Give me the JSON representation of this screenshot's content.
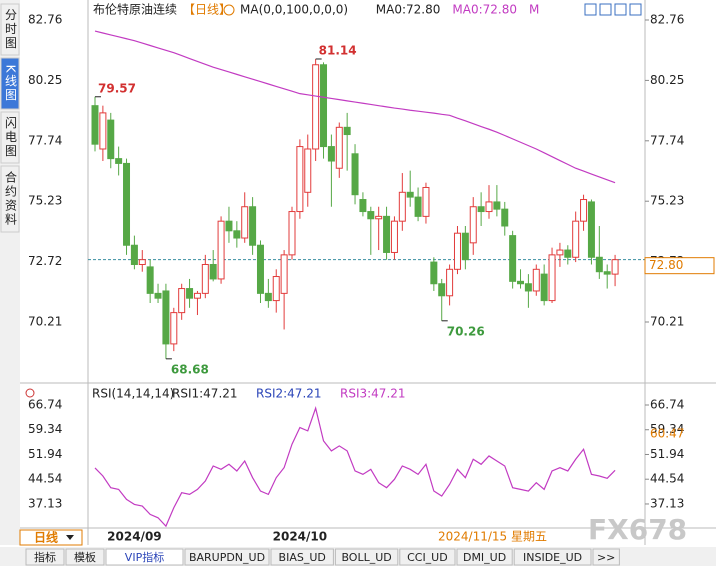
{
  "chart_data": [
    {
      "type": "candlestick",
      "title": "布伦特原油连续",
      "subtitle": "【日线】",
      "legend_items": [
        "MA(0,0,100,0,0,0)",
        "MA0:72.80",
        "MA0:72.80",
        "M"
      ],
      "legend_colors": [
        "#222222",
        "#222222",
        "#c23bc2",
        "#c23bc2"
      ],
      "categories": [
        null,
        null,
        null,
        null,
        null,
        "2024/09",
        null,
        null,
        null,
        null,
        null,
        null,
        null,
        null,
        null,
        null,
        null,
        null,
        null,
        null,
        null,
        null,
        null,
        null,
        null,
        null,
        "2024/10",
        null,
        null,
        null,
        null,
        null,
        null,
        null,
        null,
        null,
        null,
        null,
        null,
        null,
        null,
        null,
        null,
        null,
        null,
        null,
        null,
        null,
        null,
        null,
        null,
        null,
        null,
        null,
        null,
        null,
        null,
        null,
        null,
        null,
        null,
        null,
        null,
        null,
        null,
        null,
        null
      ],
      "open": [
        79.2,
        77.4,
        78.6,
        77.0,
        76.8,
        73.4,
        72.6,
        72.5,
        71.4,
        71.5,
        69.3,
        70.6,
        71.6,
        71.2,
        71.4,
        72.6,
        72.0,
        74.4,
        74.0,
        73.7,
        75.0,
        73.4,
        71.4,
        71.1,
        71.4,
        73.0,
        74.8,
        75.6,
        77.4,
        80.9,
        77.5,
        76.6,
        78.3,
        77.2,
        75.3,
        74.8,
        74.5,
        74.6,
        73.1,
        74.4,
        75.6,
        75.4,
        74.6,
        72.7,
        71.8,
        71.3,
        72.4,
        73.9,
        73.5,
        75.0,
        74.8,
        75.2,
        74.9,
        73.8,
        71.9,
        71.8,
        71.5,
        72.2,
        71.1,
        73.0,
        73.2,
        72.9,
        74.4,
        75.2,
        72.9,
        72.3,
        72.2
      ],
      "high": [
        79.57,
        79.2,
        78.9,
        77.5,
        77.0,
        73.8,
        73.2,
        72.8,
        71.8,
        71.8,
        70.8,
        71.8,
        72.0,
        71.5,
        73.0,
        73.2,
        74.6,
        75.0,
        74.4,
        75.6,
        75.4,
        73.6,
        72.0,
        72.4,
        73.2,
        75.0,
        77.8,
        78.0,
        81.14,
        81.0,
        78.0,
        78.5,
        78.9,
        77.6,
        75.6,
        75.0,
        75.0,
        75.0,
        74.6,
        76.4,
        76.5,
        75.8,
        76.0,
        72.9,
        72.0,
        72.6,
        74.2,
        74.2,
        75.4,
        75.6,
        75.9,
        75.9,
        75.2,
        74.0,
        72.4,
        72.2,
        72.6,
        72.6,
        73.3,
        73.5,
        73.4,
        74.8,
        75.5,
        75.3,
        74.2,
        72.6,
        73.0
      ],
      "low": [
        77.3,
        76.9,
        76.6,
        76.3,
        73.0,
        72.4,
        72.3,
        71.0,
        71.0,
        68.68,
        69.0,
        70.3,
        70.8,
        70.5,
        71.2,
        71.9,
        71.8,
        73.5,
        73.3,
        73.5,
        73.0,
        71.0,
        70.8,
        70.6,
        69.9,
        72.8,
        74.5,
        75.0,
        76.9,
        77.0,
        75.0,
        76.2,
        76.5,
        75.1,
        74.6,
        73.0,
        73.2,
        72.8,
        72.8,
        74.0,
        75.0,
        74.4,
        74.3,
        71.5,
        70.26,
        70.9,
        72.2,
        72.4,
        73.0,
        74.2,
        74.5,
        74.6,
        73.8,
        71.6,
        71.6,
        70.8,
        71.3,
        70.9,
        71.0,
        72.5,
        72.6,
        72.7,
        74.0,
        72.6,
        72.0,
        71.6,
        71.7
      ],
      "close": [
        77.6,
        78.9,
        77.0,
        76.8,
        73.4,
        72.6,
        72.8,
        71.4,
        71.2,
        69.3,
        70.6,
        71.6,
        71.2,
        71.4,
        72.6,
        72.0,
        74.4,
        74.0,
        73.7,
        75.0,
        73.4,
        71.4,
        71.1,
        72.1,
        73.0,
        74.8,
        77.5,
        77.4,
        80.9,
        77.5,
        76.9,
        78.3,
        78.0,
        75.5,
        74.8,
        74.5,
        74.6,
        73.1,
        74.4,
        75.6,
        75.4,
        74.6,
        75.8,
        71.8,
        71.3,
        72.4,
        73.9,
        72.8,
        75.0,
        74.8,
        75.2,
        74.9,
        74.2,
        71.9,
        71.8,
        71.5,
        72.4,
        71.1,
        73.0,
        73.2,
        72.9,
        74.4,
        75.3,
        72.9,
        72.3,
        72.2,
        72.8
      ],
      "up_color": "#e23b3b",
      "down_color": "#56a846",
      "ma": {
        "color": "#c23bc2",
        "values": [
          82.3,
          82.22,
          82.14,
          82.06,
          81.98,
          81.9,
          81.8,
          81.7,
          81.6,
          81.5,
          81.4,
          81.28,
          81.16,
          81.04,
          80.92,
          80.8,
          80.7,
          80.6,
          80.5,
          80.4,
          80.3,
          80.2,
          80.1,
          80.0,
          79.9,
          79.8,
          79.7,
          79.65,
          79.6,
          79.55,
          79.5,
          79.45,
          79.4,
          79.35,
          79.3,
          79.25,
          79.2,
          79.15,
          79.1,
          79.06,
          79.01,
          78.97,
          78.93,
          78.89,
          78.84,
          78.8,
          78.68,
          78.57,
          78.45,
          78.33,
          78.22,
          78.1,
          77.96,
          77.82,
          77.68,
          77.54,
          77.4,
          77.24,
          77.08,
          76.92,
          76.76,
          76.6,
          76.48,
          76.36,
          76.24,
          76.12,
          76.0
        ]
      },
      "ylim": [
        67.8,
        82.76
      ],
      "yticks": [
        82.76,
        80.25,
        77.74,
        75.23,
        72.72,
        70.21
      ],
      "marked_high": [
        0,
        28
      ],
      "marked_low": [
        9,
        44
      ],
      "last_price": {
        "value": 72.8,
        "label": "72.80"
      },
      "cursor_date": "2024/11/15 星期五",
      "period_button": "日线"
    },
    {
      "type": "line",
      "title": "RSI(14,14,14)",
      "legend_items": [
        "RSI1:47.21",
        "RSI2:47.21",
        "RSI3:47.21"
      ],
      "legend_colors": [
        "#222222",
        "#2b45b8",
        "#c23bc2"
      ],
      "series": [
        {
          "color": "#c23bc2",
          "values": [
            47.9,
            45.5,
            42.0,
            41.5,
            38.5,
            37.0,
            36.5,
            34.0,
            33.0,
            30.5,
            36.0,
            40.5,
            40.0,
            41.5,
            44.0,
            48.5,
            47.5,
            49.0,
            47.0,
            50.0,
            45.0,
            41.0,
            40.0,
            45.0,
            48.0,
            55.0,
            60.0,
            59.0,
            65.8,
            56.0,
            53.0,
            54.5,
            53.0,
            47.0,
            46.0,
            47.5,
            43.5,
            42.0,
            44.5,
            48.5,
            47.5,
            46.0,
            49.0,
            41.0,
            39.5,
            43.0,
            47.5,
            45.0,
            50.5,
            49.0,
            51.5,
            50.0,
            48.5,
            42.0,
            41.5,
            41.0,
            43.5,
            41.5,
            47.0,
            48.0,
            47.0,
            50.5,
            53.5,
            46.0,
            45.5,
            44.8,
            47.21
          ]
        }
      ],
      "ylim": [
        29.94,
        66.74
      ],
      "yticks": [
        66.74,
        59.34,
        51.94,
        44.54,
        37.13
      ],
      "cursor_value": 60.47
    }
  ],
  "ui": {
    "sidebar_tabs": [
      "分时图",
      "K线图",
      "闪电图",
      "合约资料"
    ],
    "selected_tab": 1,
    "bottom_tabs": [
      "指标",
      "模板",
      "VIP指标",
      "BARUPDN_UD",
      "BIAS_UD",
      "BOLL_UD",
      "CCI_UD",
      "DMI_UD",
      "INSIDE_UD",
      ">>"
    ],
    "watermark": "FX678"
  }
}
